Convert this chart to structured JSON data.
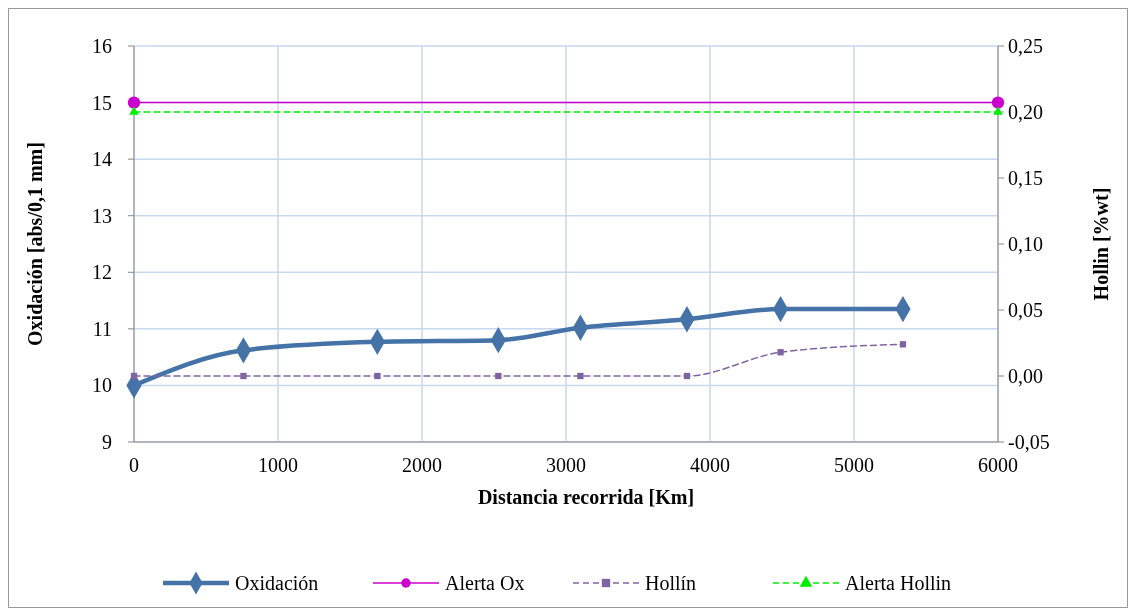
{
  "chart_data": {
    "type": "line",
    "xlabel": "Distancia recorrida [Km]",
    "ylabel": "Oxidación [abs/0,1 mm]",
    "y2label": "Hollin [%wt]",
    "xlim": [
      0,
      6000
    ],
    "xticks": [
      0,
      1000,
      2000,
      3000,
      4000,
      5000,
      6000
    ],
    "ylim": [
      9,
      16
    ],
    "yticks": [
      9,
      10,
      11,
      12,
      13,
      14,
      15,
      16
    ],
    "y2lim": [
      -0.05,
      0.25
    ],
    "y2ticks": [
      {
        "value": -0.05,
        "label": "-0,05"
      },
      {
        "value": 0,
        "label": "0,00"
      },
      {
        "value": 0.05,
        "label": "0,05"
      },
      {
        "value": 0.1,
        "label": "0,10"
      },
      {
        "value": 0.15,
        "label": "0,15"
      },
      {
        "value": 0.2,
        "label": "0,20"
      },
      {
        "value": 0.25,
        "label": "0,25"
      }
    ],
    "grid": true,
    "legend": "bottom",
    "series": [
      {
        "name": "Oxidación",
        "color": "#4572a7",
        "marker": "diamond",
        "line_style": "solid",
        "x": [
          0,
          760,
          1690,
          2530,
          3100,
          3840,
          4490,
          5340
        ],
        "values": [
          10.0,
          10.62,
          10.77,
          10.8,
          11.02,
          11.17,
          11.35,
          11.35
        ]
      },
      {
        "name": "Alerta Ox",
        "color": "#cc00cc",
        "marker": "circle",
        "line_style": "solid",
        "x": [
          0,
          6000
        ],
        "values": [
          15,
          15
        ]
      },
      {
        "name": "Hollín",
        "color": "#8064a2",
        "marker": "square",
        "line_style": "dashed",
        "axis": "y2",
        "x": [
          0,
          760,
          1690,
          2530,
          3100,
          3840,
          4490,
          5340
        ],
        "values": [
          0,
          0,
          0,
          0,
          0,
          0,
          0.018,
          0.024
        ]
      },
      {
        "name": "Alerta Hollin",
        "color": "#00ee00",
        "marker": "triangle",
        "line_style": "dashed",
        "axis": "y2",
        "x": [
          0,
          6000
        ],
        "values": [
          0.2,
          0.2
        ]
      }
    ]
  }
}
